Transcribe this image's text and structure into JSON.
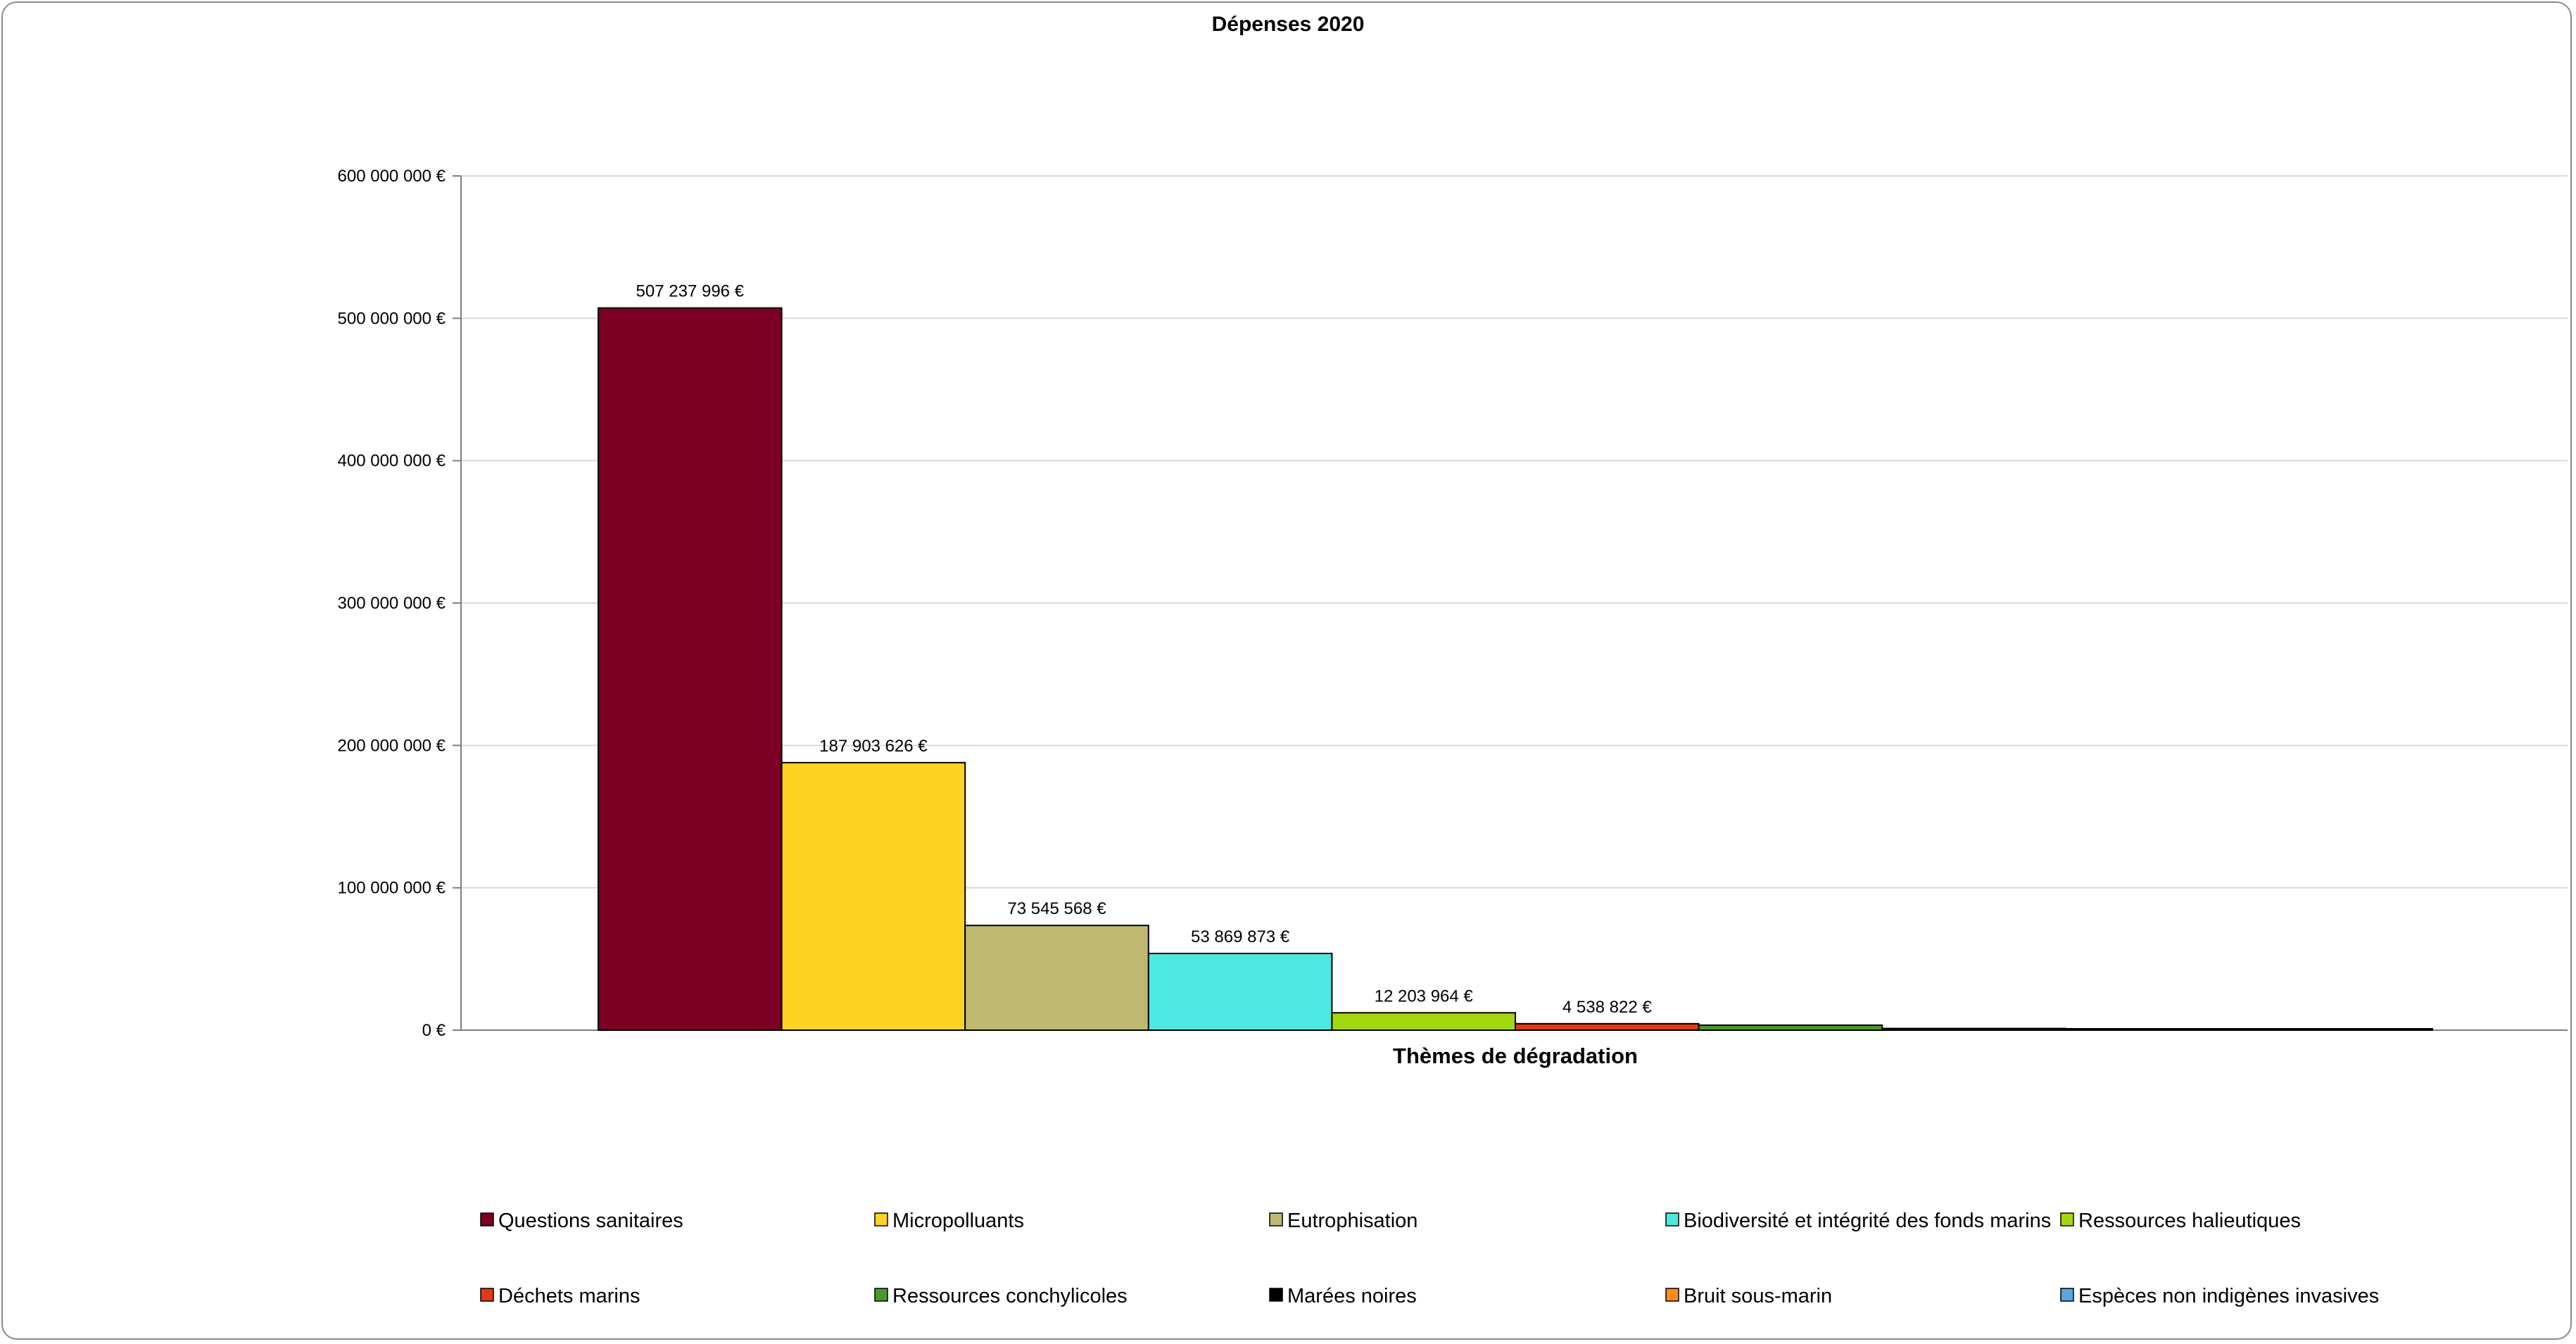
{
  "chart_data": {
    "type": "bar",
    "title": "Dépenses 2020",
    "xlabel": "Thèmes de dégradation",
    "ylabel": "",
    "ylim": [
      0,
      600000000
    ],
    "y_ticks": [
      0,
      100000000,
      200000000,
      300000000,
      400000000,
      500000000,
      600000000
    ],
    "y_tick_labels": [
      "0 €",
      "100 000 000 €",
      "200 000 000 €",
      "300 000 000 €",
      "400 000 000 €",
      "500 000 000 €",
      "600 000 000 €"
    ],
    "grid": true,
    "legend_position": "bottom",
    "series": [
      {
        "name": "Questions sanitaires",
        "value": 507237996,
        "label": "507 237 996 €",
        "color": "#7b0023"
      },
      {
        "name": "Micropolluants",
        "value": 187903626,
        "label": "187 903 626 €",
        "color": "#ffd322"
      },
      {
        "name": "Eutrophisation",
        "value": 73545568,
        "label": "73 545 568 €",
        "color": "#bfb870"
      },
      {
        "name": "Biodiversité et intégrité des fonds marins",
        "value": 53869873,
        "label": "53 869 873 €",
        "color": "#4de8e0"
      },
      {
        "name": "Ressources halieutiques",
        "value": 12203964,
        "label": "12 203 964 €",
        "color": "#a5d70f"
      },
      {
        "name": "Déchets marins",
        "value": 4538822,
        "label": "4 538 822 €",
        "color": "#e23a14"
      },
      {
        "name": "Ressources conchylicoles",
        "value": 3500000,
        "label": "",
        "color": "#4a9a2a"
      },
      {
        "name": "Marées noires",
        "value": 1200000,
        "label": "",
        "color": "#000000"
      },
      {
        "name": "Bruit sous-marin",
        "value": 900000,
        "label": "",
        "color": "#ff8b1c"
      },
      {
        "name": "Espèces non indigènes invasives",
        "value": 300000,
        "label": "",
        "color": "#5aa6e0"
      }
    ]
  }
}
